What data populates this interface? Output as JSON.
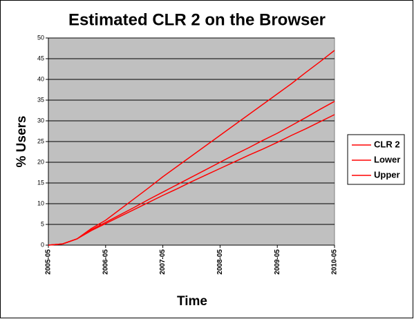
{
  "chart_data": {
    "type": "line",
    "title": "Estimated CLR 2 on the Browser",
    "x_label": "Time",
    "y_label": "% Users",
    "categories": [
      "2005-05",
      null,
      null,
      null,
      "2006-05",
      null,
      null,
      null,
      "2007-05",
      null,
      null,
      null,
      "2008-05",
      null,
      null,
      null,
      "2009-05",
      null,
      null,
      null,
      "2010-05"
    ],
    "series": [
      {
        "name": "CLR 2",
        "color": "#ff0000",
        "values": [
          0,
          0.3,
          1.5,
          3.7,
          5.5,
          7.3,
          9.1,
          11,
          12.8,
          14.6,
          16.4,
          18.2,
          20,
          21.8,
          23.5,
          25.3,
          27,
          28.9,
          30.8,
          32.8,
          34.7
        ]
      },
      {
        "name": "Lower",
        "color": "#ff0000",
        "values": [
          0,
          0.3,
          1.5,
          3.5,
          5.2,
          6.9,
          8.6,
          10.3,
          12,
          13.6,
          15.3,
          16.9,
          18.5,
          20.1,
          21.7,
          23.2,
          24.8,
          26.5,
          28.1,
          29.8,
          31.5
        ]
      },
      {
        "name": "Upper",
        "color": "#ff0000",
        "values": [
          0,
          0.3,
          1.5,
          4,
          6,
          8.6,
          11.2,
          13.8,
          16.5,
          19,
          21.5,
          24,
          26.5,
          29,
          31.5,
          34,
          36.5,
          39,
          41.7,
          44.3,
          47
        ]
      }
    ],
    "ylim": [
      0,
      50
    ],
    "yticks": [
      0,
      5,
      10,
      15,
      20,
      25,
      30,
      35,
      40,
      45,
      50
    ],
    "grid": true,
    "legend": "right",
    "plot_background": "#c0c0c0"
  }
}
